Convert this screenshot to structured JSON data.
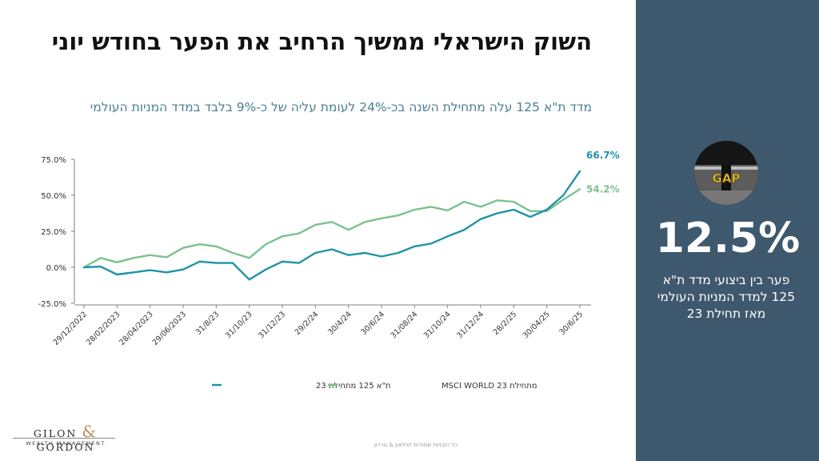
{
  "slide": {
    "headline": "השוק הישראלי ממשיך הרחיב את הפער בחודש יוני",
    "subtitle": "מדד ת\"א 125 עלה מתחילת השנה בכ-24% לעומת עליה של כ-9% בלבד במדד המניות העולמי",
    "gap_value": "12.5%",
    "gap_caption": "פער בין ביצועי מדד ת\"א 125 למדד המניות העולמי מאז תחילת 23",
    "gap_image_text": "GAP",
    "logo_line1_left": "GILON",
    "logo_amp": "&",
    "logo_line1_right": "GORDON",
    "logo_line2": "WEALTH MANAGEMENT",
    "footer_note": "כל הזכויות שמורות לגילאון & גורדון"
  },
  "colors": {
    "ta125": "#1f93a8",
    "msci": "#7cc190",
    "panel": "#3e586e",
    "subtitle": "#4a7f96"
  },
  "chart_data": {
    "type": "line",
    "y_unit": "%",
    "ylim": [
      -25,
      75
    ],
    "yticks": [
      "75.0%",
      "50.0%",
      "25.0%",
      "0.0%",
      "-25.0%"
    ],
    "xtick_labels": [
      "29/12/2022",
      "28/02/2023",
      "28/04/2023",
      "29/06/2023",
      "31/8/23",
      "31/10/23",
      "31/12/23",
      "29/2/24",
      "30/4/24",
      "30/6/24",
      "31/08/24",
      "31/10/24",
      "31/12/24",
      "28/2/25",
      "30/04/25",
      "30/6/25"
    ],
    "grid": false,
    "legend_position": "bottom",
    "series": [
      {
        "name": "ת\"א 125 מתחילת 23",
        "color": "#1f93a8",
        "end_label": "66.7%",
        "values": [
          0,
          0.5,
          -5,
          -3.5,
          -2,
          -3.5,
          -1.5,
          4,
          3,
          3,
          -8.5,
          -1.5,
          4,
          3,
          10,
          12.5,
          8.5,
          10,
          7.5,
          10,
          14.5,
          16.5,
          21.5,
          26,
          33.5,
          37.5,
          40,
          35,
          40,
          50,
          66.7
        ]
      },
      {
        "name": "MSCI WORLD מתחילת 23",
        "color": "#7cc190",
        "end_label": "54.2%",
        "values": [
          0,
          6.5,
          3.5,
          6.5,
          8.5,
          7,
          13.5,
          16,
          14.5,
          10,
          6.5,
          16,
          21.5,
          23.5,
          29.5,
          31.5,
          26,
          31.5,
          34,
          36,
          40,
          42,
          39.5,
          45.5,
          42,
          46.5,
          45.5,
          39,
          39,
          47,
          54.2
        ]
      }
    ]
  }
}
